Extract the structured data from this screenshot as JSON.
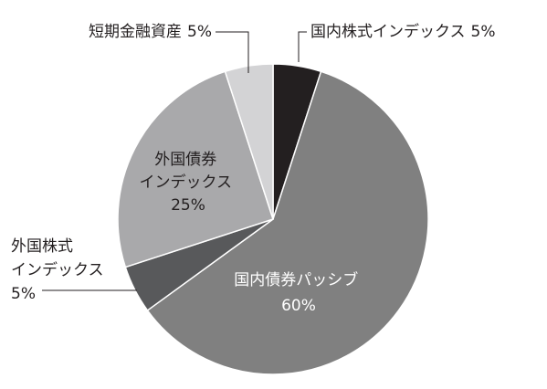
{
  "chart_data": {
    "type": "pie",
    "start": "top",
    "direction": "clockwise",
    "slices": [
      {
        "label": "国内株式インデックス",
        "value": 5,
        "value_label": "5%",
        "color": "#231f20"
      },
      {
        "label": "国内債券パッシブ",
        "value": 60,
        "value_label": "60%",
        "color": "#808080"
      },
      {
        "label": "外国株式インデックス",
        "value": 5,
        "value_label": "5%",
        "color": "#58595b"
      },
      {
        "label": "外国債券インデックス",
        "value": 25,
        "value_label": "25%",
        "color": "#a9a9ab"
      },
      {
        "label": "短期金融資産",
        "value": 5,
        "value_label": "5%",
        "color": "#d3d3d5"
      }
    ]
  }
}
